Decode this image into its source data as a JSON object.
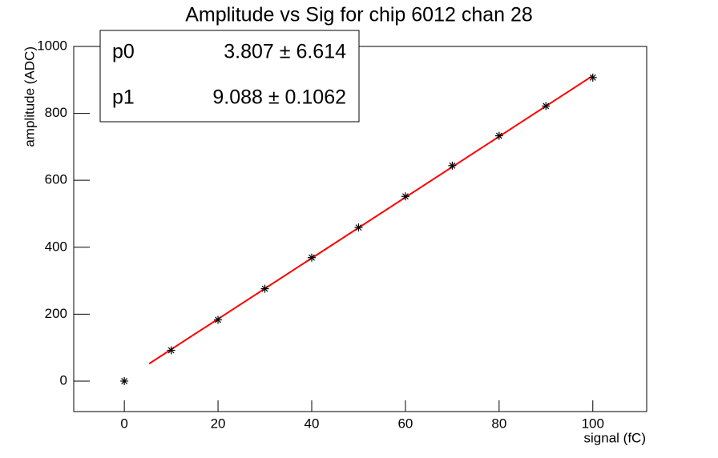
{
  "chart_data": {
    "type": "scatter",
    "title": "Amplitude vs Sig for chip 6012 chan 28",
    "x_label": "signal (fC)",
    "y_label": "amplitude (ADC)",
    "x": [
      0,
      10,
      20,
      30,
      40,
      50,
      60,
      70,
      80,
      90,
      100
    ],
    "series": [
      {
        "color": "#000000",
        "values": [
          0,
          92,
          183,
          276,
          369,
          459,
          552,
          644,
          733,
          822,
          907
        ]
      }
    ],
    "xlim": [
      -10.8,
      111.5
    ],
    "ylim": [
      -91,
      1000
    ],
    "xticks": [
      0,
      20,
      40,
      60,
      80,
      100
    ],
    "yticks": [
      0,
      200,
      400,
      600,
      800,
      1000
    ],
    "fit": {
      "color": "#ff0000",
      "xlim": [
        5.3,
        100
      ],
      "params": [
        {
          "name": "p0",
          "value": 3.807,
          "error": 6.614,
          "label": "3.807 ± 6.614"
        },
        {
          "name": "p1",
          "value": 9.088,
          "error": 0.1062,
          "label": "9.088 ± 0.1062"
        }
      ]
    }
  }
}
